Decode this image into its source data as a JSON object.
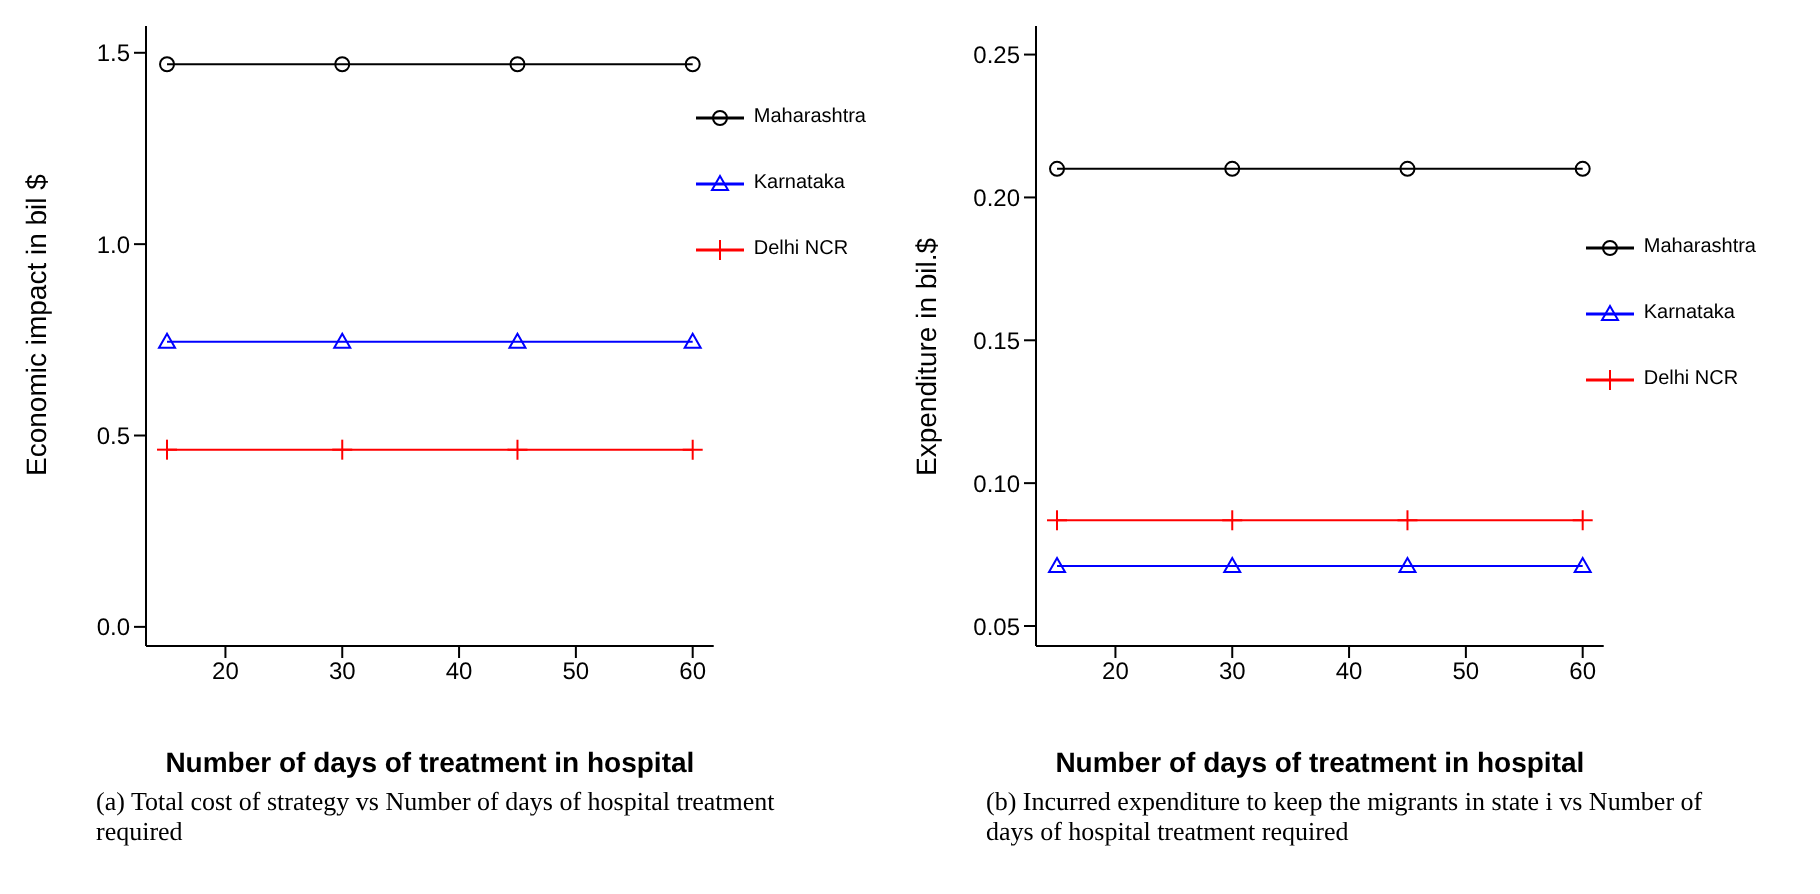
{
  "chart_data": [
    {
      "type": "line",
      "xlabel": "Number of days of treatment in hospital",
      "ylabel": "Economic impact in bil $",
      "x": [
        15,
        30,
        45,
        60
      ],
      "series": [
        {
          "name": "Maharashtra",
          "color": "#000000",
          "marker": "circle",
          "values": [
            1.47,
            1.47,
            1.47,
            1.47
          ]
        },
        {
          "name": "Karnataka",
          "color": "#0000ff",
          "marker": "triangle",
          "values": [
            0.745,
            0.745,
            0.745,
            0.745
          ]
        },
        {
          "name": "Delhi NCR",
          "color": "#ff0000",
          "marker": "cross",
          "values": [
            0.463,
            0.463,
            0.463,
            0.463
          ]
        }
      ],
      "xlim": [
        13.2,
        61.8
      ],
      "xticks": [
        20,
        30,
        40,
        50,
        60
      ],
      "ylim": [
        -0.05,
        1.57
      ],
      "yticks": [
        {
          "value": 0,
          "label": "0.0"
        },
        {
          "value": 0.5,
          "label": "0.5"
        },
        {
          "value": 1,
          "label": "1.0"
        },
        {
          "value": 1.5,
          "label": "1.5"
        }
      ],
      "legend": "top right",
      "grid": false,
      "annotations": [
        "(a) Total cost of strategy vs Number of days of hospital treatment required"
      ]
    },
    {
      "type": "line",
      "xlabel": "Number of days of treatment in hospital",
      "ylabel": "Expenditure in bil.$",
      "x": [
        15,
        30,
        45,
        60
      ],
      "series": [
        {
          "name": "Maharashtra",
          "color": "#000000",
          "marker": "circle",
          "values": [
            0.21,
            0.21,
            0.21,
            0.21
          ]
        },
        {
          "name": "Karnataka",
          "color": "#0000ff",
          "marker": "triangle",
          "values": [
            0.071,
            0.071,
            0.071,
            0.071
          ]
        },
        {
          "name": "Delhi NCR",
          "color": "#ff0000",
          "marker": "cross",
          "values": [
            0.087,
            0.087,
            0.087,
            0.087
          ]
        }
      ],
      "xlim": [
        13.2,
        61.8
      ],
      "xticks": [
        20,
        30,
        40,
        50,
        60
      ],
      "ylim": [
        0.043,
        0.26
      ],
      "yticks": [
        {
          "value": 0.05,
          "label": "0.05"
        },
        {
          "value": 0.1,
          "label": "0.10"
        },
        {
          "value": 0.15,
          "label": "0.15"
        },
        {
          "value": 0.2,
          "label": "0.20"
        },
        {
          "value": 0.25,
          "label": "0.25"
        }
      ],
      "legend": "right",
      "grid": false,
      "annotations": [
        "(b) Incurred expenditure to keep the migrants in state i vs Number of days of hospital treatment required"
      ]
    }
  ]
}
